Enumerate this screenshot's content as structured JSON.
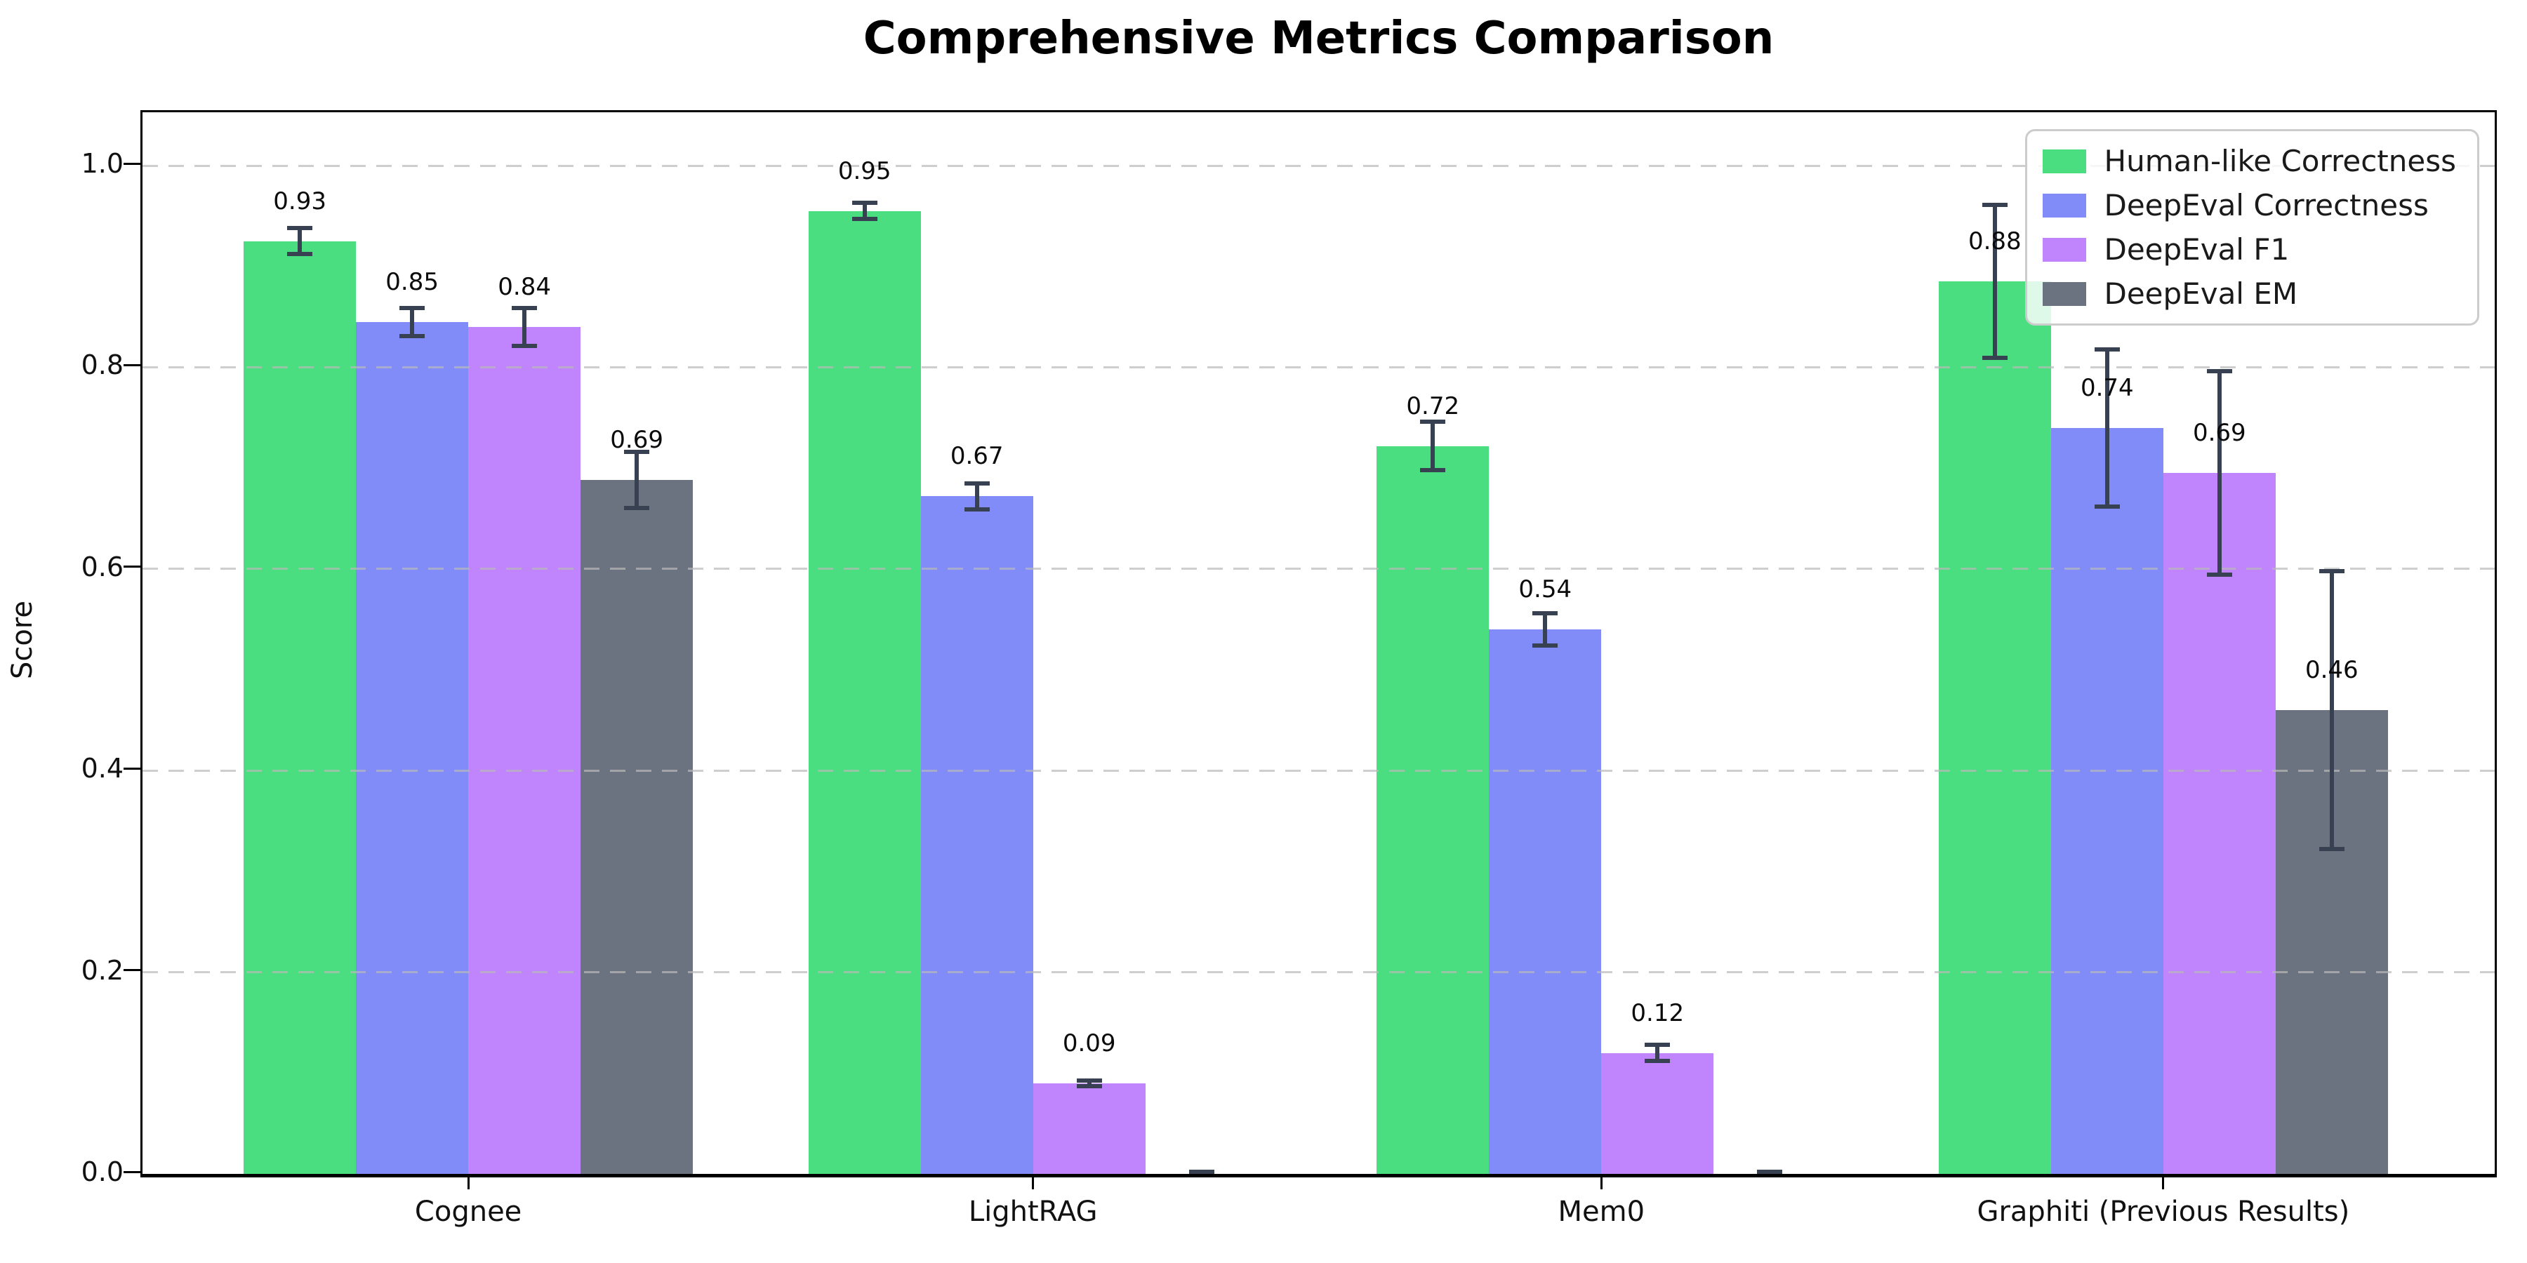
{
  "chart_data": {
    "type": "bar",
    "title": "Comprehensive Metrics Comparison",
    "xlabel": "",
    "ylabel": "Score",
    "categories": [
      "Cognee",
      "LightRAG",
      "Mem0",
      "Graphiti (Previous Results)"
    ],
    "yticks": [
      "0.0",
      "0.2",
      "0.4",
      "0.6",
      "0.8",
      "1.0"
    ],
    "ylim": [
      0,
      1.05
    ],
    "grid": true,
    "grid_style": "dashed",
    "legend_position": "upper right",
    "error_bars": true,
    "series": [
      {
        "name": "Human-like Correctness",
        "color": "#4ade80",
        "values": [
          0.925,
          0.955,
          0.722,
          0.885
        ],
        "errors": [
          0.015,
          0.01,
          0.026,
          0.078
        ],
        "labels": [
          "0.93",
          "0.95",
          "0.72",
          "0.88"
        ]
      },
      {
        "name": "DeepEval Correctness",
        "color": "#818cf8",
        "values": [
          0.845,
          0.672,
          0.54,
          0.74
        ],
        "errors": [
          0.016,
          0.015,
          0.018,
          0.08
        ],
        "labels": [
          "0.85",
          "0.67",
          "0.54",
          "0.74"
        ]
      },
      {
        "name": "DeepEval F1",
        "color": "#c084fc",
        "values": [
          0.84,
          0.09,
          0.12,
          0.695
        ],
        "errors": [
          0.021,
          0.005,
          0.01,
          0.103
        ],
        "labels": [
          "0.84",
          "0.09",
          "0.12",
          "0.69"
        ]
      },
      {
        "name": "DeepEval EM",
        "color": "#6b7280",
        "values": [
          0.688,
          0.0,
          0.0,
          0.46
        ],
        "errors": [
          0.03,
          0.004,
          0.003,
          0.14
        ],
        "labels": [
          "0.69",
          "",
          "",
          "0.46"
        ]
      }
    ],
    "colors": {
      "error_bar": "#374151",
      "grid": "#bdbdbd",
      "axis": "#000000",
      "background": "#ffffff"
    }
  }
}
